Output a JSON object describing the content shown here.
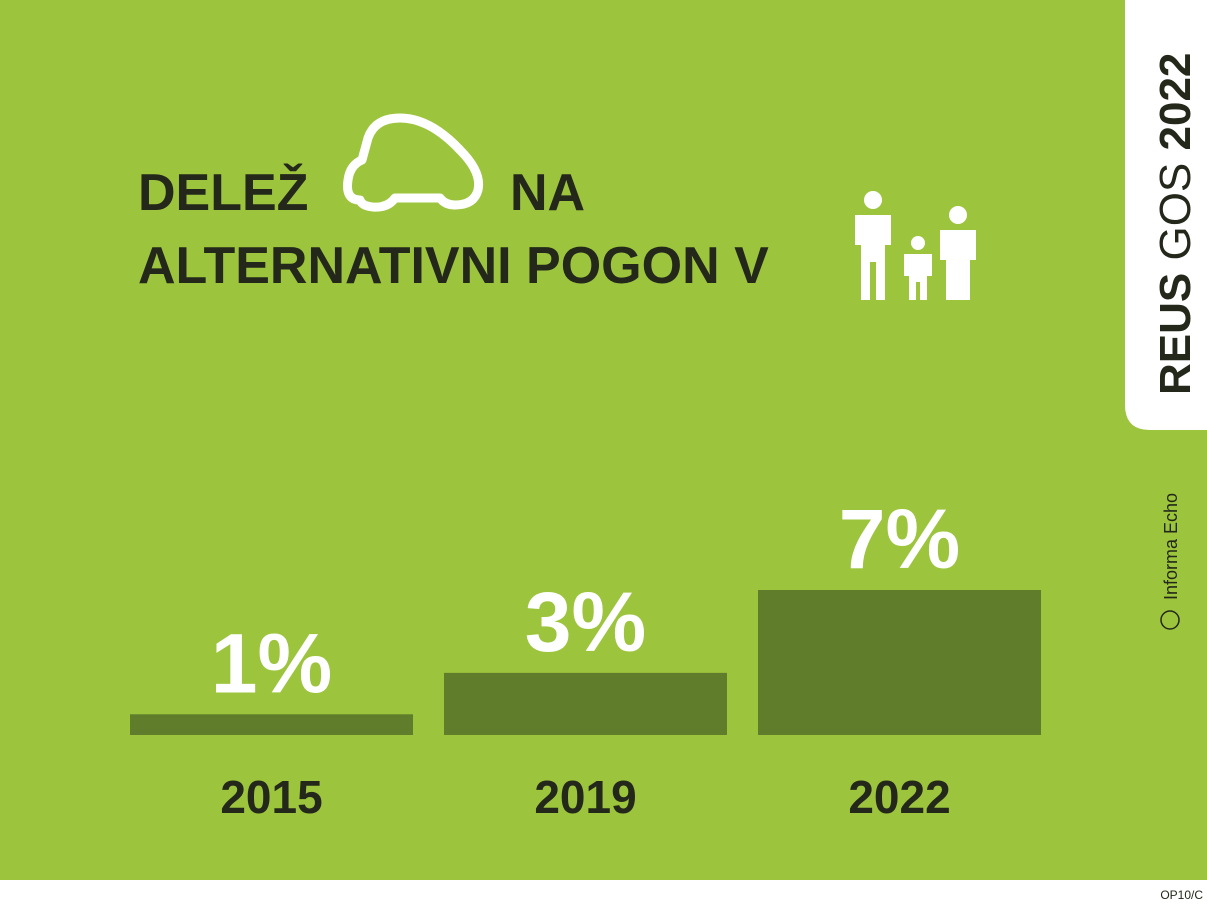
{
  "chart_data": {
    "type": "bar",
    "title": [
      "DELEŽ",
      "NA",
      "ALTERNATIVNI POGON V"
    ],
    "categories": [
      "2015",
      "2019",
      "2022"
    ],
    "values": [
      1,
      3,
      7
    ],
    "value_labels": [
      "1%",
      "3%",
      "7%"
    ],
    "color": "#5f7d2b",
    "ylim": [
      0,
      7
    ],
    "side_title": [
      "REUS",
      "GOS",
      "2022"
    ],
    "source": "Informa Echo",
    "code": "OP10/C"
  }
}
